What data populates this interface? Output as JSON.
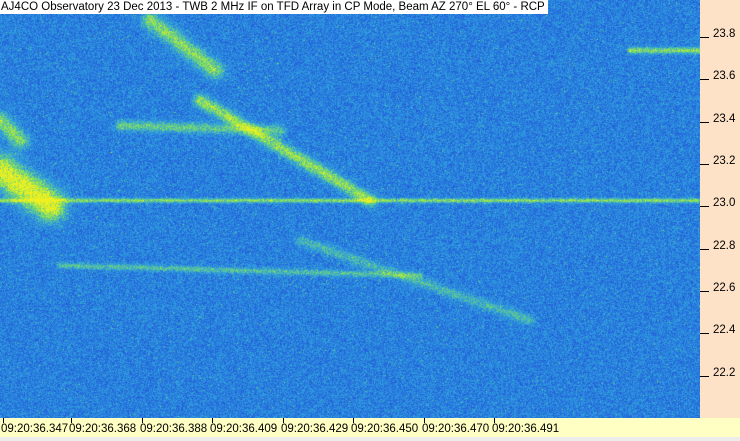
{
  "chart_data": {
    "type": "heatmap",
    "title": "AJ4CO Observatory 23 Dec 2013 - TWB 2 MHz IF on TFD Array in CP Mode, Beam AZ 270° EL 60° - RCP",
    "xlabel": "",
    "ylabel": "",
    "x_tick_labels": [
      "09:20:36.347",
      "09:20:36.368",
      "09:20:36.388",
      "09:20:36.409",
      "09:20:36.429",
      "09:20:36.450",
      "09:20:36.470",
      "09:20:36.491"
    ],
    "y_tick_labels": [
      "23.8",
      "23.6",
      "23.4",
      "23.2",
      "23.0",
      "22.8",
      "22.6",
      "22.4",
      "22.2"
    ],
    "y_ticks": [
      23.8,
      23.6,
      23.4,
      23.2,
      23.0,
      22.8,
      22.6,
      22.4,
      22.2
    ],
    "ylim": [
      22.0,
      23.97
    ],
    "y_axis_position": "right",
    "colormap": [
      "#0a1a8c",
      "#1f49d8",
      "#2fa0e0",
      "#7fe060",
      "#f0f020"
    ],
    "grid": false
  },
  "colors": {
    "plot_background": "#1230b0",
    "y_axis_background": "#fde2c8",
    "x_axis_background": "#ffffc4"
  }
}
